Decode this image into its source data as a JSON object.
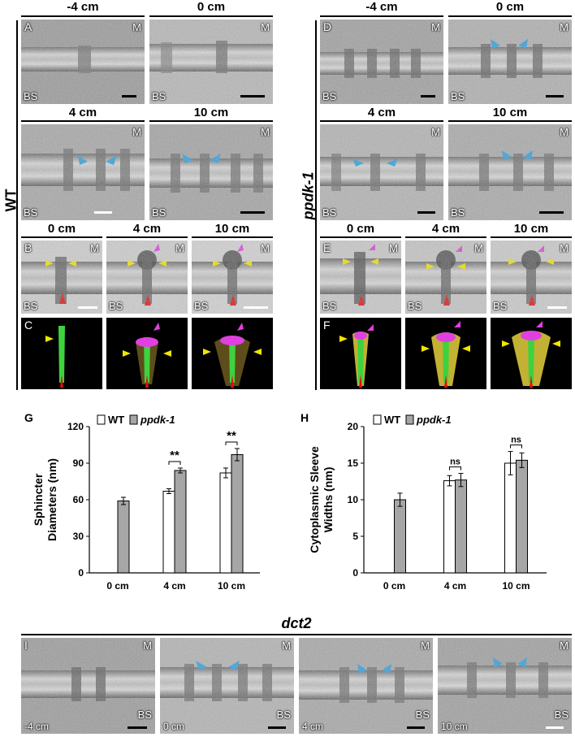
{
  "wt_section": {
    "side_label": "WT",
    "row1_headers": [
      "-4 cm",
      "0 cm"
    ],
    "row2_headers": [
      "4 cm",
      "10 cm"
    ],
    "row3_headers": [
      "0 cm",
      "4 cm",
      "10 cm"
    ],
    "panel_letters": {
      "A": "A",
      "B": "B",
      "C": "C"
    }
  },
  "ppdk_section": {
    "side_label": "ppdk-1",
    "row1_headers": [
      "-4 cm",
      "0 cm"
    ],
    "row2_headers": [
      "4 cm",
      "10 cm"
    ],
    "row3_headers": [
      "0 cm",
      "4 cm",
      "10 cm"
    ],
    "panel_letters": {
      "D": "D",
      "E": "E",
      "F": "F"
    }
  },
  "labels": {
    "M": "M",
    "BS": "BS"
  },
  "dct2_section": {
    "title": "dct2",
    "panel_letter": "I",
    "distances": [
      "-4 cm",
      "0 cm",
      "4 cm",
      "10 cm"
    ]
  },
  "colors": {
    "wt_bar": "#ffffff",
    "ppdk_bar": "#a6a6a6",
    "arrow_blue": "#2b9fe0",
    "arrow_magenta": "#e040e0",
    "arrow_yellow": "#f2e600",
    "arrow_red": "#e01010"
  },
  "chart_data": [
    {
      "panel": "G",
      "type": "bar",
      "ylabel": "Sphincter Diameters (nm)",
      "categories": [
        "0 cm",
        "4 cm",
        "10 cm"
      ],
      "ylim": [
        0,
        120
      ],
      "yticks": [
        0,
        30,
        60,
        90,
        120
      ],
      "series": [
        {
          "name": "WT",
          "values": [
            null,
            67,
            82
          ],
          "errors": [
            null,
            2,
            4
          ]
        },
        {
          "name": "ppdk-1",
          "values": [
            59,
            84,
            97
          ],
          "errors": [
            3,
            2,
            5
          ]
        }
      ],
      "annotations": [
        "**",
        "**"
      ],
      "annotation_categories": [
        "4 cm",
        "10 cm"
      ],
      "legend": "top-left"
    },
    {
      "panel": "H",
      "type": "bar",
      "ylabel": "Cytoplasmic Sleeve Widths (nm)",
      "categories": [
        "0 cm",
        "4 cm",
        "10 cm"
      ],
      "ylim": [
        0,
        20
      ],
      "yticks": [
        0,
        5,
        10,
        15,
        20
      ],
      "series": [
        {
          "name": "WT",
          "values": [
            null,
            12.6,
            15.0
          ],
          "errors": [
            null,
            0.7,
            1.6
          ]
        },
        {
          "name": "ppdk-1",
          "values": [
            10.0,
            12.7,
            15.4
          ],
          "errors": [
            0.9,
            0.9,
            1.0
          ]
        }
      ],
      "annotations": [
        "ns",
        "ns"
      ],
      "annotation_categories": [
        "4 cm",
        "10 cm"
      ],
      "legend": "top-left"
    }
  ]
}
